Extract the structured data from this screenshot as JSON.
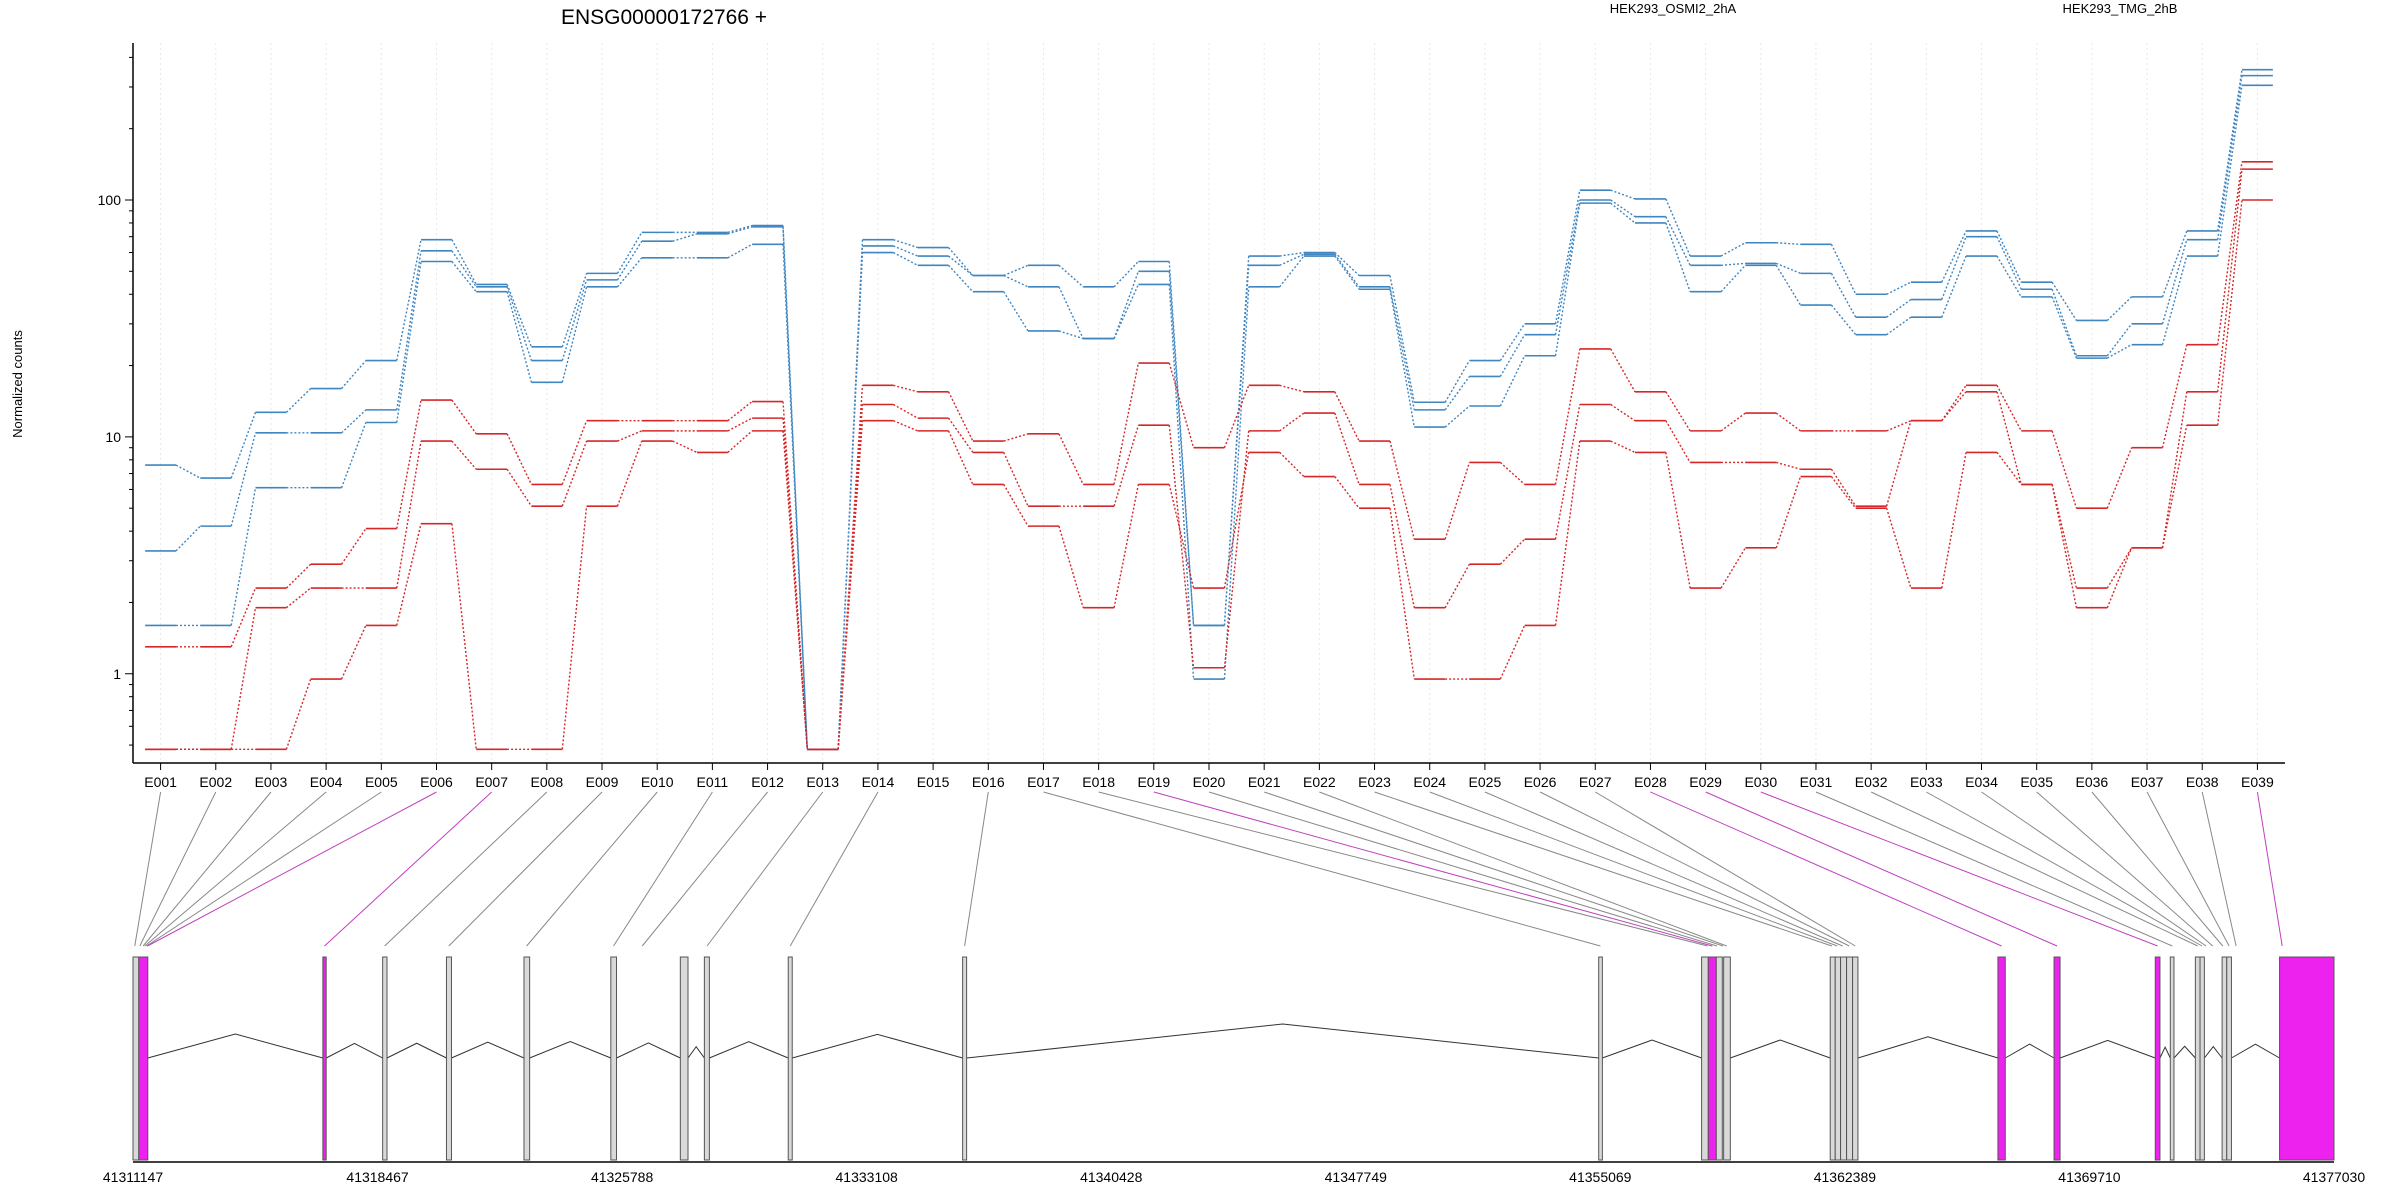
{
  "chart_data": {
    "type": "line",
    "title": "ENSG00000172766 +",
    "ylabel": "Normalized counts",
    "y_scale": "log",
    "y_ticks": [
      "1",
      "10",
      "100"
    ],
    "ylim": [
      0.42,
      460
    ],
    "exon_labels": [
      "E001",
      "E002",
      "E003",
      "E004",
      "E005",
      "E006",
      "E007",
      "E008",
      "E009",
      "E010",
      "E011",
      "E012",
      "E013",
      "E014",
      "E015",
      "E016",
      "E017",
      "E018",
      "E019",
      "E020",
      "E021",
      "E022",
      "E023",
      "E024",
      "E025",
      "E026",
      "E027",
      "E028",
      "E029",
      "E030",
      "E031",
      "E032",
      "E033",
      "E034",
      "E035",
      "E036",
      "E037",
      "E038",
      "E039"
    ],
    "legend": [
      {
        "name": "HEK293_OSMI2_2hA",
        "color": "#d62728"
      },
      {
        "name": "HEK293_TMG_2hB",
        "color": "#3f85c0"
      }
    ],
    "series": [
      {
        "group": "TMG",
        "color": "#3f85c0",
        "values": [
          7.6,
          6.7,
          12.7,
          16,
          21,
          68,
          44,
          24,
          49,
          73,
          73,
          78,
          0.48,
          68,
          63,
          48,
          53,
          43,
          55,
          1.6,
          58,
          60,
          48,
          14,
          21,
          30,
          110,
          101,
          58,
          66,
          65,
          40,
          45,
          74,
          45,
          31,
          39,
          74,
          355
        ]
      },
      {
        "group": "TMG",
        "color": "#3f85c0",
        "values": [
          3.3,
          4.2,
          10.4,
          10.4,
          13,
          61,
          43,
          21,
          46,
          67,
          72,
          77,
          0.48,
          64,
          58,
          48,
          43,
          26,
          50,
          1.6,
          53,
          59,
          43,
          13,
          18,
          27,
          100,
          85,
          53,
          54,
          49,
          32,
          38,
          70,
          42,
          22,
          30,
          68,
          335
        ]
      },
      {
        "group": "TMG",
        "color": "#3f85c0",
        "values": [
          1.6,
          1.6,
          6.1,
          6.1,
          11.5,
          55,
          41,
          17,
          43,
          57,
          57,
          65,
          0.48,
          60,
          53,
          41,
          28,
          26,
          44,
          0.95,
          43,
          58,
          42,
          11,
          13.5,
          22,
          97,
          80,
          41,
          53,
          36,
          27,
          32,
          58,
          39,
          21.5,
          24.5,
          58,
          305
        ]
      },
      {
        "group": "OSMI2",
        "color": "#d62728",
        "values": [
          1.3,
          1.3,
          2.3,
          2.9,
          4.1,
          14.3,
          10.3,
          6.3,
          11.7,
          11.7,
          11.7,
          14.1,
          0.48,
          16.5,
          15.5,
          9.6,
          10.3,
          6.3,
          20.5,
          9,
          16.5,
          15.5,
          9.6,
          3.7,
          7.8,
          6.3,
          23.5,
          15.5,
          10.6,
          12.6,
          10.6,
          10.6,
          11.7,
          16.5,
          10.6,
          5,
          9,
          24.5,
          145
        ]
      },
      {
        "group": "OSMI2",
        "color": "#d62728",
        "values": [
          0.48,
          0.48,
          1.9,
          2.3,
          2.3,
          9.6,
          7.3,
          5.1,
          9.6,
          10.6,
          10.6,
          12,
          0.48,
          13.7,
          12,
          8.6,
          5.1,
          5.1,
          11.2,
          1.06,
          10.6,
          12.6,
          6.3,
          1.9,
          2.9,
          3.7,
          13.7,
          11.7,
          7.8,
          7.8,
          7.3,
          5.1,
          11.7,
          15.5,
          6.3,
          2.3,
          3.4,
          15.5,
          135
        ]
      },
      {
        "group": "OSMI2",
        "color": "#d62728",
        "values": [
          0.48,
          0.48,
          0.48,
          0.95,
          1.6,
          4.3,
          0.48,
          0.48,
          5.1,
          9.6,
          8.6,
          10.6,
          0.48,
          11.7,
          10.6,
          6.3,
          4.2,
          1.9,
          6.3,
          2.3,
          8.6,
          6.8,
          5,
          0.95,
          0.95,
          1.6,
          9.6,
          8.6,
          2.3,
          3.4,
          6.8,
          5,
          2.3,
          8.6,
          6.3,
          1.9,
          3.4,
          11.2,
          100
        ]
      }
    ],
    "gene_axis": {
      "tick_labels": [
        "41311147",
        "41318467",
        "41325788",
        "41333108",
        "41340428",
        "41347749",
        "41355069",
        "41362389",
        "41369710",
        "41377030"
      ],
      "start": 41311147,
      "end": 41377030
    },
    "exons": [
      {
        "start": 41311147,
        "end": 41311320,
        "hl": false
      },
      {
        "start": 41311320,
        "end": 41311590,
        "hl": true
      },
      {
        "start": 41316830,
        "end": 41316930,
        "hl": true
      },
      {
        "start": 41318620,
        "end": 41318750,
        "hl": false
      },
      {
        "start": 41320530,
        "end": 41320680,
        "hl": false
      },
      {
        "start": 41322850,
        "end": 41323020,
        "hl": false
      },
      {
        "start": 41325450,
        "end": 41325620,
        "hl": false
      },
      {
        "start": 41327530,
        "end": 41327760,
        "hl": false
      },
      {
        "start": 41328250,
        "end": 41328400,
        "hl": false
      },
      {
        "start": 41330760,
        "end": 41330880,
        "hl": false
      },
      {
        "start": 41335980,
        "end": 41336100,
        "hl": false
      },
      {
        "start": 41355020,
        "end": 41355130,
        "hl": false
      },
      {
        "start": 41358100,
        "end": 41358300,
        "hl": false
      },
      {
        "start": 41358300,
        "end": 41358540,
        "hl": true
      },
      {
        "start": 41358540,
        "end": 41358720,
        "hl": false
      },
      {
        "start": 41358760,
        "end": 41358960,
        "hl": false
      },
      {
        "start": 41361950,
        "end": 41362100,
        "hl": false
      },
      {
        "start": 41362100,
        "end": 41362260,
        "hl": false
      },
      {
        "start": 41362260,
        "end": 41362440,
        "hl": false
      },
      {
        "start": 41362440,
        "end": 41362620,
        "hl": false
      },
      {
        "start": 41362620,
        "end": 41362780,
        "hl": false
      },
      {
        "start": 41366970,
        "end": 41367190,
        "hl": true
      },
      {
        "start": 41368650,
        "end": 41368830,
        "hl": true
      },
      {
        "start": 41371680,
        "end": 41371820,
        "hl": true
      },
      {
        "start": 41372130,
        "end": 41372240,
        "hl": false
      },
      {
        "start": 41372880,
        "end": 41373020,
        "hl": false
      },
      {
        "start": 41373020,
        "end": 41373150,
        "hl": false
      },
      {
        "start": 41373680,
        "end": 41373820,
        "hl": false
      },
      {
        "start": 41373820,
        "end": 41373960,
        "hl": false
      },
      {
        "start": 41375400,
        "end": 41377030,
        "hl": true
      }
    ],
    "connectors": [
      {
        "exon": 0,
        "pos": 41311200,
        "hl": false
      },
      {
        "exon": 1,
        "pos": 41311350,
        "hl": false
      },
      {
        "exon": 2,
        "pos": 41311450,
        "hl": false
      },
      {
        "exon": 3,
        "pos": 41311500,
        "hl": false
      },
      {
        "exon": 4,
        "pos": 41311550,
        "hl": false
      },
      {
        "exon": 5,
        "pos": 41311580,
        "hl": true
      },
      {
        "exon": 6,
        "pos": 41316880,
        "hl": true
      },
      {
        "exon": 7,
        "pos": 41318680,
        "hl": false
      },
      {
        "exon": 8,
        "pos": 41320600,
        "hl": false
      },
      {
        "exon": 9,
        "pos": 41322930,
        "hl": false
      },
      {
        "exon": 10,
        "pos": 41325530,
        "hl": false
      },
      {
        "exon": 11,
        "pos": 41326390,
        "hl": false
      },
      {
        "exon": 12,
        "pos": 41328330,
        "hl": false
      },
      {
        "exon": 13,
        "pos": 41330820,
        "hl": false
      },
      {
        "exon": 15,
        "pos": 41336040,
        "hl": false
      },
      {
        "exon": 16,
        "pos": 41355070,
        "hl": false
      },
      {
        "exon": 17,
        "pos": 41358280,
        "hl": false
      },
      {
        "exon": 18,
        "pos": 41358420,
        "hl": true
      },
      {
        "exon": 19,
        "pos": 41358560,
        "hl": false
      },
      {
        "exon": 20,
        "pos": 41358740,
        "hl": false
      },
      {
        "exon": 21,
        "pos": 41358850,
        "hl": false
      },
      {
        "exon": 22,
        "pos": 41362000,
        "hl": false
      },
      {
        "exon": 23,
        "pos": 41362160,
        "hl": false
      },
      {
        "exon": 24,
        "pos": 41362320,
        "hl": false
      },
      {
        "exon": 25,
        "pos": 41362520,
        "hl": false
      },
      {
        "exon": 26,
        "pos": 41362700,
        "hl": false
      },
      {
        "exon": 27,
        "pos": 41367080,
        "hl": true
      },
      {
        "exon": 28,
        "pos": 41368740,
        "hl": true
      },
      {
        "exon": 29,
        "pos": 41371750,
        "hl": true
      },
      {
        "exon": 30,
        "pos": 41372190,
        "hl": false
      },
      {
        "exon": 31,
        "pos": 41372950,
        "hl": false
      },
      {
        "exon": 32,
        "pos": 41373080,
        "hl": false
      },
      {
        "exon": 33,
        "pos": 41373200,
        "hl": false
      },
      {
        "exon": 34,
        "pos": 41373400,
        "hl": false
      },
      {
        "exon": 35,
        "pos": 41373700,
        "hl": false
      },
      {
        "exon": 36,
        "pos": 41373890,
        "hl": false
      },
      {
        "exon": 37,
        "pos": 41374100,
        "hl": false
      },
      {
        "exon": 38,
        "pos": 41375480,
        "hl": true
      }
    ],
    "colors": {
      "highlight": "#ee22ee",
      "exon_fill": "#d9d9d9",
      "connector_gray": "#888888",
      "connector_magenta": "#c040c0"
    }
  }
}
